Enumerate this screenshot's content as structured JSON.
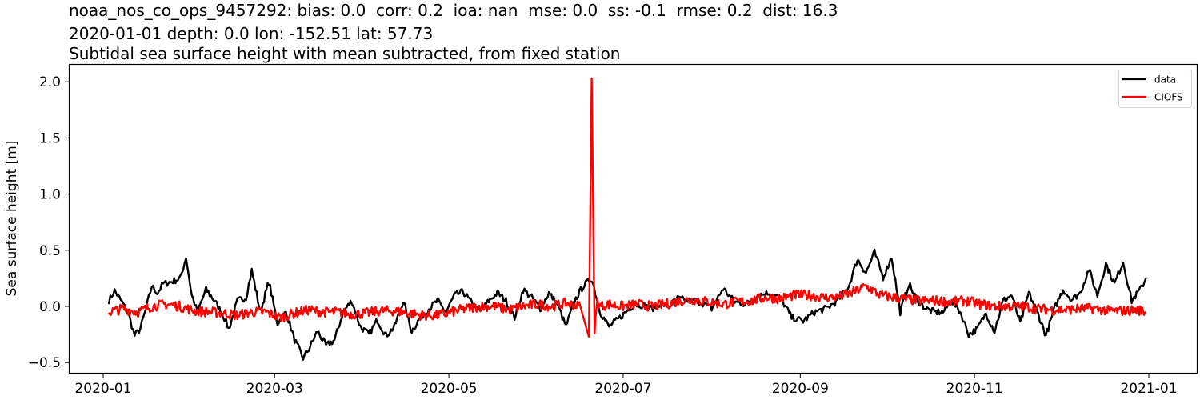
{
  "title": {
    "line1": "noaa_nos_co_ops_9457292: bias: 0.0  corr: 0.2  ioa: nan  mse: 0.0  ss: -0.1  rmse: 0.2  dist: 16.3",
    "line2": "2020-01-01 depth: 0.0 lon: -152.51 lat: 57.73",
    "line3": "Subtidal sea surface height with mean subtracted, from fixed station"
  },
  "colors": {
    "data": "#000000",
    "model": "#ff0000"
  },
  "chart_data": {
    "type": "line",
    "title": "noaa_nos_co_ops_9457292: bias: 0.0  corr: 0.2  ioa: nan  mse: 0.0  ss: -0.1  rmse: 0.2  dist: 16.3 / 2020-01-01 depth: 0.0 lon: -152.51 lat: 57.73 / Subtidal sea surface height with mean subtracted, from fixed station",
    "xlabel": "",
    "ylabel": "Sea surface height [m]",
    "xlim": [
      "2019-12-20",
      "2021-01-12"
    ],
    "ylim": [
      -0.6,
      2.15
    ],
    "yticks": [
      -0.5,
      0.0,
      0.5,
      1.0,
      1.5,
      2.0
    ],
    "ytick_labels": [
      "−0.5",
      "0.0",
      "0.5",
      "1.0",
      "1.5",
      "2.0"
    ],
    "xticks": [
      "2020-01",
      "2020-03",
      "2020-05",
      "2020-07",
      "2020-09",
      "2020-11",
      "2021-01"
    ],
    "grid": false,
    "legend_position": "upper right",
    "legend": [
      "data",
      "CIOFS"
    ],
    "series": [
      {
        "name": "data",
        "color": "#000000",
        "x": [
          "2020-01-03",
          "2020-01-05",
          "2020-01-08",
          "2020-01-10",
          "2020-01-12",
          "2020-01-14",
          "2020-01-16",
          "2020-01-18",
          "2020-01-20",
          "2020-01-22",
          "2020-01-25",
          "2020-01-28",
          "2020-01-30",
          "2020-02-01",
          "2020-02-03",
          "2020-02-06",
          "2020-02-09",
          "2020-02-12",
          "2020-02-14",
          "2020-02-17",
          "2020-02-20",
          "2020-02-22",
          "2020-02-25",
          "2020-02-28",
          "2020-03-02",
          "2020-03-05",
          "2020-03-08",
          "2020-03-11",
          "2020-03-13",
          "2020-03-16",
          "2020-03-19",
          "2020-03-22",
          "2020-03-25",
          "2020-03-28",
          "2020-03-31",
          "2020-04-03",
          "2020-04-06",
          "2020-04-09",
          "2020-04-12",
          "2020-04-15",
          "2020-04-18",
          "2020-04-21",
          "2020-04-24",
          "2020-04-27",
          "2020-04-30",
          "2020-05-03",
          "2020-05-06",
          "2020-05-09",
          "2020-05-12",
          "2020-05-15",
          "2020-05-18",
          "2020-05-21",
          "2020-05-24",
          "2020-05-27",
          "2020-05-30",
          "2020-06-02",
          "2020-06-05",
          "2020-06-08",
          "2020-06-11",
          "2020-06-14",
          "2020-06-17",
          "2020-06-20",
          "2020-06-23",
          "2020-06-26",
          "2020-06-29",
          "2020-07-02",
          "2020-07-05",
          "2020-07-08",
          "2020-07-11",
          "2020-07-14",
          "2020-07-17",
          "2020-07-20",
          "2020-07-24",
          "2020-07-28",
          "2020-08-01",
          "2020-08-05",
          "2020-08-09",
          "2020-08-13",
          "2020-08-17",
          "2020-08-21",
          "2020-08-25",
          "2020-08-29",
          "2020-09-02",
          "2020-09-06",
          "2020-09-10",
          "2020-09-14",
          "2020-09-18",
          "2020-09-21",
          "2020-09-24",
          "2020-09-27",
          "2020-09-30",
          "2020-10-03",
          "2020-10-06",
          "2020-10-09",
          "2020-10-12",
          "2020-10-15",
          "2020-10-18",
          "2020-10-21",
          "2020-10-24",
          "2020-10-27",
          "2020-10-30",
          "2020-11-02",
          "2020-11-05",
          "2020-11-08",
          "2020-11-11",
          "2020-11-14",
          "2020-11-17",
          "2020-11-20",
          "2020-11-23",
          "2020-11-26",
          "2020-11-29",
          "2020-12-02",
          "2020-12-05",
          "2020-12-08",
          "2020-12-11",
          "2020-12-14",
          "2020-12-17",
          "2020-12-20",
          "2020-12-23",
          "2020-12-26",
          "2020-12-29",
          "2020-12-31"
        ],
        "values": [
          0.05,
          0.14,
          0.02,
          -0.08,
          -0.26,
          -0.2,
          -0.02,
          0.18,
          0.12,
          0.2,
          0.22,
          0.25,
          0.44,
          0.1,
          -0.05,
          0.15,
          0.05,
          -0.08,
          -0.2,
          0.05,
          0.08,
          0.32,
          -0.05,
          0.22,
          -0.15,
          -0.05,
          -0.3,
          -0.46,
          -0.38,
          -0.22,
          -0.35,
          -0.3,
          -0.05,
          0.05,
          -0.18,
          -0.25,
          -0.12,
          -0.26,
          -0.18,
          0.05,
          -0.22,
          -0.1,
          -0.02,
          0.05,
          -0.05,
          0.1,
          0.13,
          0.03,
          -0.05,
          0.05,
          0.12,
          0.05,
          -0.1,
          0.15,
          0.08,
          -0.02,
          0.12,
          0.02,
          -0.18,
          0.05,
          0.18,
          0.25,
          -0.05,
          -0.18,
          -0.12,
          -0.05,
          0.02,
          0.01,
          -0.02,
          0.03,
          0.0,
          0.07,
          0.05,
          0.04,
          -0.02,
          0.16,
          0.04,
          0.02,
          0.1,
          0.12,
          0.08,
          -0.1,
          -0.13,
          -0.05,
          -0.02,
          0.05,
          0.18,
          0.42,
          0.3,
          0.48,
          0.26,
          0.44,
          -0.05,
          0.2,
          0.05,
          -0.02,
          -0.05,
          -0.05,
          0.05,
          -0.05,
          -0.25,
          -0.2,
          -0.06,
          -0.22,
          0.05,
          0.1,
          -0.15,
          0.12,
          -0.05,
          -0.26,
          -0.02,
          0.15,
          0.06,
          0.12,
          0.33,
          0.1,
          0.38,
          0.2,
          0.4,
          0.05,
          0.15,
          0.25
        ],
        "note": "Observed subtidal SSH; range roughly -0.46 (mid-March) to 0.48 (late Sept)"
      },
      {
        "name": "CIOFS",
        "color": "#ff0000",
        "x": [
          "2020-01-03",
          "2020-01-08",
          "2020-01-13",
          "2020-01-18",
          "2020-01-23",
          "2020-01-28",
          "2020-02-02",
          "2020-02-07",
          "2020-02-12",
          "2020-02-17",
          "2020-02-22",
          "2020-02-27",
          "2020-03-03",
          "2020-03-08",
          "2020-03-13",
          "2020-03-18",
          "2020-03-23",
          "2020-03-28",
          "2020-04-02",
          "2020-04-07",
          "2020-04-12",
          "2020-04-17",
          "2020-04-22",
          "2020-04-27",
          "2020-05-02",
          "2020-05-07",
          "2020-05-12",
          "2020-05-17",
          "2020-05-22",
          "2020-05-27",
          "2020-06-01",
          "2020-06-06",
          "2020-06-11",
          "2020-06-16",
          "2020-06-19",
          "2020-06-20",
          "2020-06-21",
          "2020-06-22",
          "2020-06-23",
          "2020-06-26",
          "2020-07-01",
          "2020-07-06",
          "2020-07-11",
          "2020-07-16",
          "2020-07-21",
          "2020-07-26",
          "2020-07-31",
          "2020-08-05",
          "2020-08-10",
          "2020-08-15",
          "2020-08-20",
          "2020-08-25",
          "2020-08-30",
          "2020-09-04",
          "2020-09-09",
          "2020-09-14",
          "2020-09-19",
          "2020-09-24",
          "2020-09-29",
          "2020-10-04",
          "2020-10-09",
          "2020-10-14",
          "2020-10-19",
          "2020-10-24",
          "2020-10-29",
          "2020-11-03",
          "2020-11-08",
          "2020-11-13",
          "2020-11-18",
          "2020-11-23",
          "2020-11-28",
          "2020-12-03",
          "2020-12-08",
          "2020-12-13",
          "2020-12-18",
          "2020-12-23",
          "2020-12-28",
          "2020-12-31"
        ],
        "values": [
          -0.05,
          -0.02,
          -0.05,
          0.0,
          0.02,
          0.0,
          -0.04,
          -0.05,
          -0.06,
          -0.08,
          -0.05,
          -0.05,
          -0.1,
          -0.06,
          -0.03,
          -0.05,
          -0.05,
          -0.07,
          -0.06,
          -0.04,
          -0.04,
          -0.06,
          -0.08,
          -0.08,
          -0.05,
          -0.02,
          0.0,
          0.0,
          -0.03,
          0.0,
          0.02,
          0.0,
          0.03,
          0.0,
          -0.27,
          2.03,
          -0.2,
          0.05,
          0.0,
          0.02,
          0.0,
          0.02,
          0.0,
          0.02,
          0.05,
          0.06,
          0.04,
          0.02,
          0.04,
          0.05,
          0.08,
          0.07,
          0.1,
          0.1,
          0.08,
          0.08,
          0.12,
          0.18,
          0.1,
          0.08,
          0.06,
          0.05,
          0.05,
          0.04,
          0.05,
          0.02,
          0.0,
          0.0,
          0.0,
          -0.02,
          -0.03,
          -0.03,
          -0.02,
          -0.02,
          -0.04,
          -0.04,
          -0.03,
          -0.05
        ],
        "note": "Model (CIOFS) SSH with high-frequency jitter ~±0.05; spike to 2.03 around 2020-06-20, dip to -0.27 just before"
      }
    ]
  }
}
